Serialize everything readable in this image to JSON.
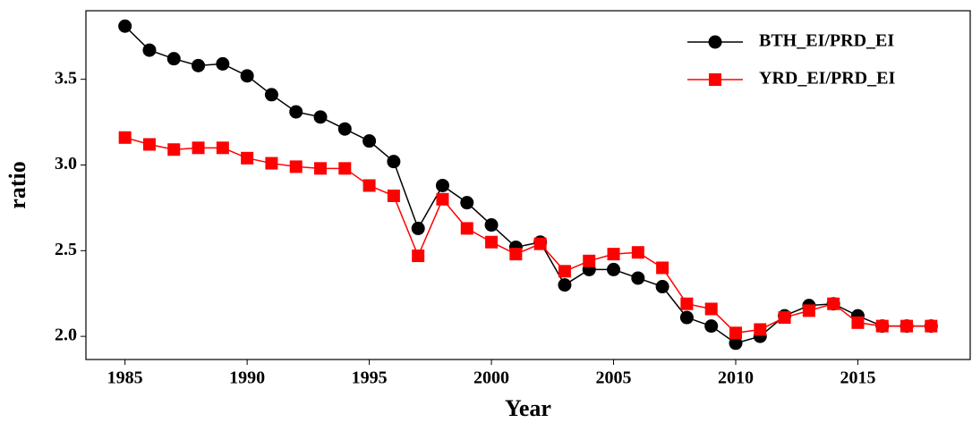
{
  "chart_data": {
    "type": "line",
    "x_label": "Year",
    "y_label": "ratio",
    "x": [
      1985,
      1986,
      1987,
      1988,
      1989,
      1990,
      1991,
      1992,
      1993,
      1994,
      1995,
      1996,
      1997,
      1998,
      1999,
      2000,
      2001,
      2002,
      2003,
      2004,
      2005,
      2006,
      2007,
      2008,
      2009,
      2010,
      2011,
      2012,
      2013,
      2014,
      2015,
      2016,
      2017,
      2018
    ],
    "series": [
      {
        "name": "BTH_EI/PRD_EI",
        "color": "#000000",
        "marker": "circle",
        "values": [
          3.81,
          3.67,
          3.62,
          3.58,
          3.59,
          3.52,
          3.41,
          3.31,
          3.28,
          3.21,
          3.14,
          3.02,
          2.63,
          2.88,
          2.78,
          2.65,
          2.52,
          2.55,
          2.3,
          2.39,
          2.39,
          2.34,
          2.29,
          2.11,
          2.06,
          1.96,
          2.0,
          2.12,
          2.18,
          2.19,
          2.12,
          2.06,
          2.06,
          2.06
        ]
      },
      {
        "name": "YRD_EI/PRD_EI",
        "color": "#ff0000",
        "marker": "square",
        "values": [
          3.16,
          3.12,
          3.09,
          3.1,
          3.1,
          3.04,
          3.01,
          2.99,
          2.98,
          2.98,
          2.88,
          2.82,
          2.47,
          2.8,
          2.63,
          2.55,
          2.48,
          2.54,
          2.38,
          2.44,
          2.48,
          2.49,
          2.4,
          2.19,
          2.16,
          2.02,
          2.04,
          2.11,
          2.15,
          2.19,
          2.08,
          2.06,
          2.06,
          2.06
        ]
      }
    ],
    "xlim": [
      1983.4,
      2019.6
    ],
    "xticks": [
      1985,
      1990,
      1995,
      2000,
      2005,
      2010,
      2015
    ],
    "ylim": [
      1.865,
      3.9
    ],
    "yticks": [
      {
        "value": 2.0,
        "label": "2.0"
      },
      2.5,
      {
        "value": 3.0,
        "label": "3.0"
      },
      3.5
    ],
    "legend": "upper right"
  }
}
